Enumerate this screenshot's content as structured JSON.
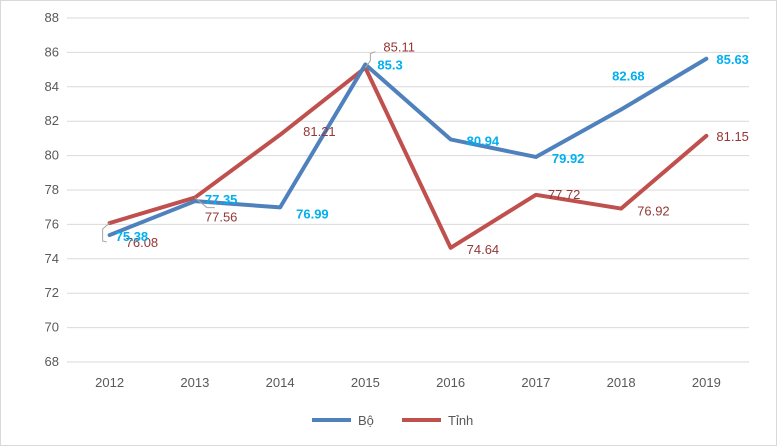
{
  "chart_data": {
    "type": "line",
    "categories": [
      "2012",
      "2013",
      "2014",
      "2015",
      "2016",
      "2017",
      "2018",
      "2019"
    ],
    "series": [
      {
        "name": "Bộ",
        "color": "#4f81bd",
        "label_color": "#00b0f0",
        "values": [
          75.38,
          77.35,
          76.99,
          85.3,
          80.94,
          79.92,
          82.68,
          85.63
        ],
        "labels": [
          "75.38",
          "77.35",
          "76.99",
          "85.3",
          "80.94",
          "79.92",
          "82.68",
          "85.63"
        ]
      },
      {
        "name": "Tỉnh",
        "color": "#c0504d",
        "label_color": "#953735",
        "values": [
          76.08,
          77.56,
          81.21,
          85.11,
          74.64,
          77.72,
          76.92,
          81.15
        ],
        "labels": [
          "76.08",
          "77.56",
          "81.21",
          "85.11",
          "74.64",
          "77.72",
          "76.92",
          "81.15"
        ]
      }
    ],
    "yticks": [
      "68",
      "70",
      "72",
      "74",
      "76",
      "78",
      "80",
      "82",
      "84",
      "86",
      "88"
    ],
    "ylim": [
      68,
      88
    ],
    "grid": true,
    "legend_position": "bottom"
  }
}
